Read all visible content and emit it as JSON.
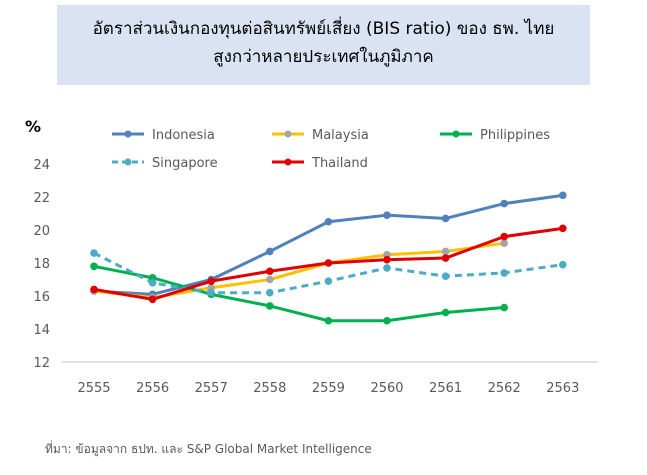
{
  "chart_data": {
    "type": "line",
    "title": [
      "อัตราส่วนเงินกองทุนต่อสินทรัพย์เสี่ยง (BIS ratio) ของ ธพ. ไทย",
      "สูงกว่าหลายประเทศในภูมิภาค"
    ],
    "ylabel": "%",
    "ylim": [
      12,
      24
    ],
    "yticks": [
      12,
      14,
      16,
      18,
      20,
      22,
      24
    ],
    "categories": [
      "2555",
      "2556",
      "2557",
      "2558",
      "2559",
      "2560",
      "2561",
      "2562",
      "2563"
    ],
    "legend_position": "top",
    "series": [
      {
        "name": "Indonesia",
        "color": "#4f81bd",
        "dashed": false,
        "values": [
          16.3,
          16.1,
          17.0,
          18.7,
          20.5,
          20.9,
          20.7,
          21.6,
          22.1
        ]
      },
      {
        "name": "Malaysia",
        "color": "#ffc000",
        "marker": "#a5a5a5",
        "dashed": false,
        "values": [
          16.3,
          15.9,
          16.5,
          17.0,
          18.0,
          18.5,
          18.7,
          19.2,
          null
        ]
      },
      {
        "name": "Philippines",
        "color": "#00b050",
        "dashed": false,
        "values": [
          17.8,
          17.1,
          16.1,
          15.4,
          14.5,
          14.5,
          15.0,
          15.3,
          null
        ]
      },
      {
        "name": "Singapore",
        "color": "#4bacc6",
        "dashed": true,
        "values": [
          18.6,
          16.8,
          16.2,
          16.2,
          16.9,
          17.7,
          17.2,
          17.4,
          17.9
        ]
      },
      {
        "name": "Thailand",
        "color": "#e00000",
        "dashed": false,
        "values": [
          16.4,
          15.8,
          16.9,
          17.5,
          18.0,
          18.2,
          18.3,
          19.6,
          20.1
        ]
      }
    ]
  },
  "source": "ที่มา: ข้อมูลจาก ธปท. และ S&P Global Market Intelligence"
}
